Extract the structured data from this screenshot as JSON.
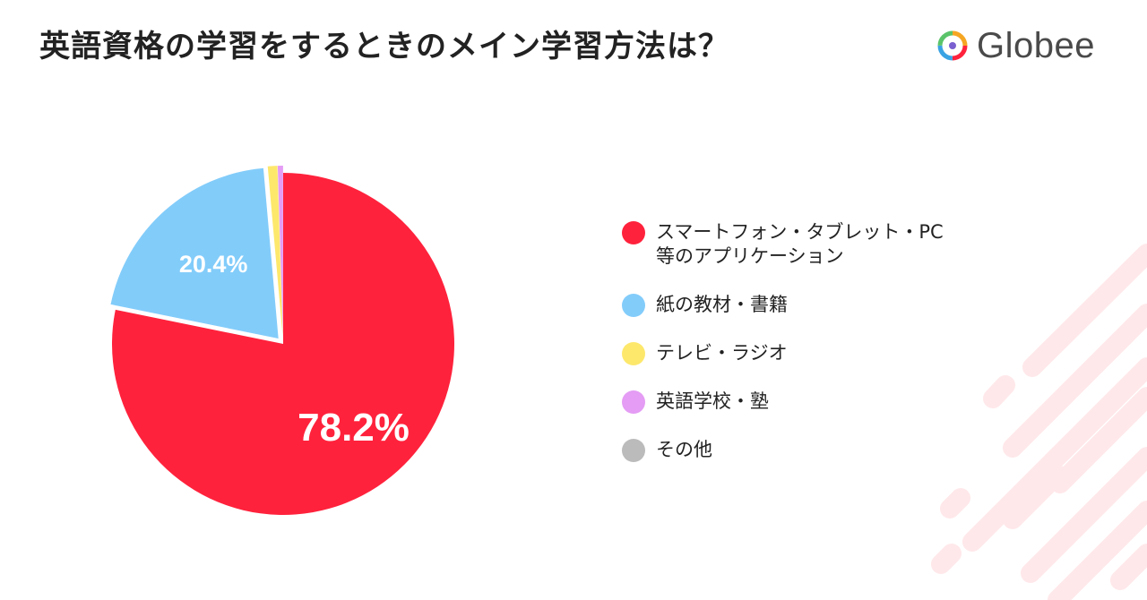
{
  "title": "英語資格の学習をするときのメイン学習方法は？",
  "brand": {
    "name": "Globee",
    "logo_icon": "globee-logo-icon"
  },
  "chart_data": {
    "type": "pie",
    "title": "英語資格の学習をするときのメイン学習方法は？",
    "unit": "%",
    "legend_position": "right",
    "slices": [
      {
        "label": "スマートフォン・タブレット・PC\n等のアプリケーション",
        "value": 78.2,
        "display": "78.2%",
        "color": "#ff223c",
        "exploded": false
      },
      {
        "label": "紙の教材・書籍",
        "value": 20.4,
        "display": "20.4%",
        "color": "#82ccfa",
        "exploded": true
      },
      {
        "label": "テレビ・ラジオ",
        "value": 0.9,
        "display": "",
        "color": "#fde86c",
        "exploded": true
      },
      {
        "label": "英語学校・塾",
        "value": 0.5,
        "display": "",
        "color": "#e49cf4",
        "exploded": true
      },
      {
        "label": "その他",
        "value": 0.0,
        "display": "",
        "color": "#bbbbbb",
        "exploded": true
      }
    ]
  }
}
